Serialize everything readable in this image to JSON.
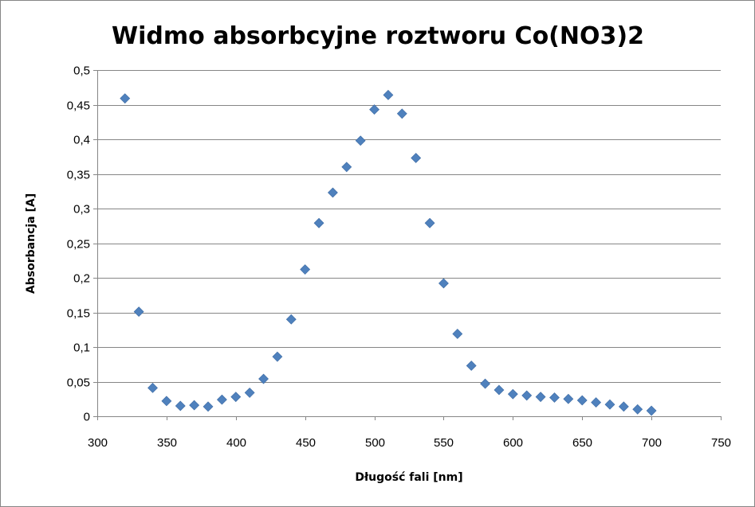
{
  "chart_data": {
    "type": "scatter",
    "title": "Widmo absorbcyjne  roztworu Co(NO3)2",
    "xlabel": "Długość fali [nm]",
    "ylabel": "Absorbancja [A]",
    "xlim": [
      300,
      750
    ],
    "ylim": [
      0,
      0.5
    ],
    "x_ticks": [
      "300",
      "350",
      "400",
      "450",
      "500",
      "550",
      "600",
      "650",
      "700",
      "750"
    ],
    "y_ticks": [
      "0",
      "0,05",
      "0,1",
      "0,15",
      "0,2",
      "0,25",
      "0,3",
      "0,35",
      "0,4",
      "0,45",
      "0,5"
    ],
    "grid": "horizontal",
    "legend": "none",
    "marker": "diamond",
    "marker_color": "#4f81bd",
    "series": [
      {
        "name": "Absorbancja",
        "points": [
          {
            "x": 320,
            "y": 0.459
          },
          {
            "x": 330,
            "y": 0.151
          },
          {
            "x": 340,
            "y": 0.041
          },
          {
            "x": 350,
            "y": 0.022
          },
          {
            "x": 360,
            "y": 0.015
          },
          {
            "x": 370,
            "y": 0.016
          },
          {
            "x": 380,
            "y": 0.014
          },
          {
            "x": 390,
            "y": 0.024
          },
          {
            "x": 400,
            "y": 0.028
          },
          {
            "x": 410,
            "y": 0.034
          },
          {
            "x": 420,
            "y": 0.054
          },
          {
            "x": 430,
            "y": 0.086
          },
          {
            "x": 440,
            "y": 0.14
          },
          {
            "x": 450,
            "y": 0.212
          },
          {
            "x": 460,
            "y": 0.279
          },
          {
            "x": 470,
            "y": 0.323
          },
          {
            "x": 480,
            "y": 0.36
          },
          {
            "x": 490,
            "y": 0.398
          },
          {
            "x": 500,
            "y": 0.443
          },
          {
            "x": 510,
            "y": 0.464
          },
          {
            "x": 520,
            "y": 0.437
          },
          {
            "x": 530,
            "y": 0.373
          },
          {
            "x": 540,
            "y": 0.279
          },
          {
            "x": 550,
            "y": 0.192
          },
          {
            "x": 560,
            "y": 0.119
          },
          {
            "x": 570,
            "y": 0.073
          },
          {
            "x": 580,
            "y": 0.047
          },
          {
            "x": 590,
            "y": 0.038
          },
          {
            "x": 600,
            "y": 0.032
          },
          {
            "x": 610,
            "y": 0.03
          },
          {
            "x": 620,
            "y": 0.028
          },
          {
            "x": 630,
            "y": 0.027
          },
          {
            "x": 640,
            "y": 0.025
          },
          {
            "x": 650,
            "y": 0.023
          },
          {
            "x": 660,
            "y": 0.02
          },
          {
            "x": 670,
            "y": 0.017
          },
          {
            "x": 680,
            "y": 0.014
          },
          {
            "x": 690,
            "y": 0.01
          },
          {
            "x": 700,
            "y": 0.008
          }
        ]
      }
    ]
  }
}
